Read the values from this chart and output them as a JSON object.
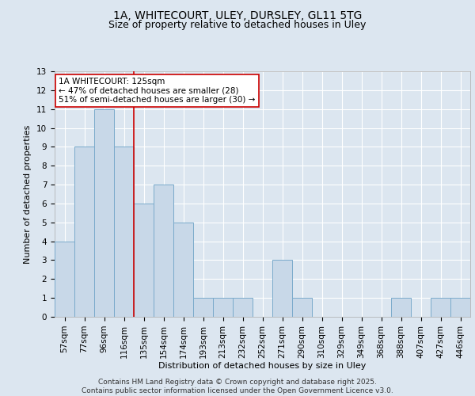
{
  "title_line1": "1A, WHITECOURT, ULEY, DURSLEY, GL11 5TG",
  "title_line2": "Size of property relative to detached houses in Uley",
  "xlabel": "Distribution of detached houses by size in Uley",
  "ylabel": "Number of detached properties",
  "categories": [
    "57sqm",
    "77sqm",
    "96sqm",
    "116sqm",
    "135sqm",
    "154sqm",
    "174sqm",
    "193sqm",
    "213sqm",
    "232sqm",
    "252sqm",
    "271sqm",
    "290sqm",
    "310sqm",
    "329sqm",
    "349sqm",
    "368sqm",
    "388sqm",
    "407sqm",
    "427sqm",
    "446sqm"
  ],
  "values": [
    4,
    9,
    11,
    9,
    6,
    7,
    5,
    1,
    1,
    1,
    0,
    3,
    1,
    0,
    0,
    0,
    0,
    1,
    0,
    1,
    1
  ],
  "bar_color": "#c8d8e8",
  "bar_edgecolor": "#7aaacb",
  "vline_x": 3.5,
  "vline_color": "#cc0000",
  "annotation_text": "1A WHITECOURT: 125sqm\n← 47% of detached houses are smaller (28)\n51% of semi-detached houses are larger (30) →",
  "annotation_box_color": "#ffffff",
  "annotation_box_edgecolor": "#cc0000",
  "ylim": [
    0,
    13
  ],
  "yticks": [
    0,
    1,
    2,
    3,
    4,
    5,
    6,
    7,
    8,
    9,
    10,
    11,
    12,
    13
  ],
  "fig_background": "#dce6f0",
  "ax_background": "#dce6f0",
  "grid_color": "#ffffff",
  "footer_text": "Contains HM Land Registry data © Crown copyright and database right 2025.\nContains public sector information licensed under the Open Government Licence v3.0.",
  "title_fontsize": 10,
  "subtitle_fontsize": 9,
  "axis_label_fontsize": 8,
  "tick_fontsize": 7.5,
  "annotation_fontsize": 7.5,
  "footer_fontsize": 6.5
}
